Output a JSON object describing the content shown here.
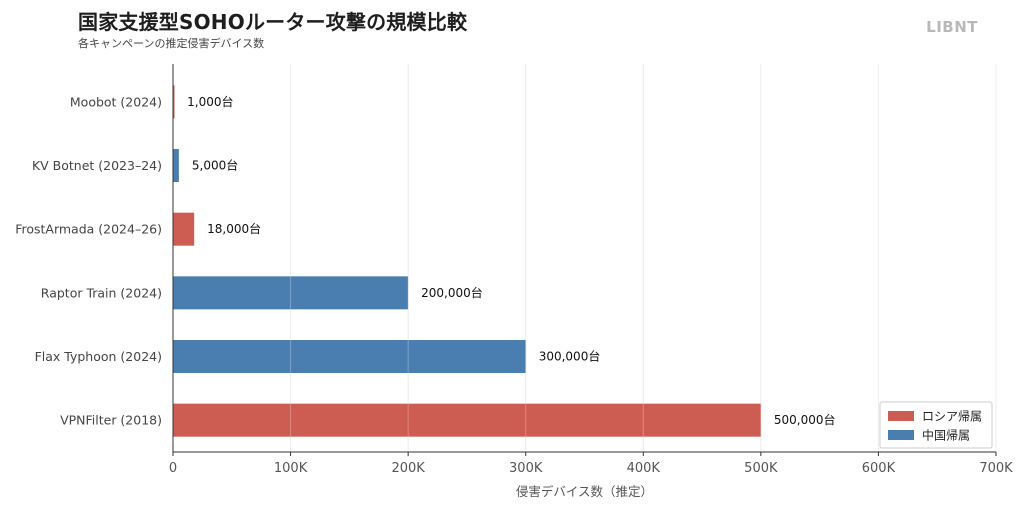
{
  "header": {
    "title": "国家支援型SOHOルーター攻撃の規模比較",
    "subtitle": "各キャンペーンの推定侵害デバイス数",
    "brand": "LIBNT"
  },
  "colors": {
    "russia": "#cd5c52",
    "china": "#4a7eb0"
  },
  "chart_data": {
    "type": "bar",
    "orientation": "horizontal",
    "title": "国家支援型SOHOルーター攻撃の規模比較",
    "subtitle": "各キャンペーンの推定侵害デバイス数",
    "xlabel": "侵害デバイス数（推定）",
    "ylabel": "",
    "xlim": [
      0,
      700000
    ],
    "grid": true,
    "x_ticks": [
      0,
      100000,
      200000,
      300000,
      400000,
      500000,
      600000,
      700000
    ],
    "x_tick_labels": [
      "0",
      "100K",
      "200K",
      "300K",
      "400K",
      "500K",
      "600K",
      "700K"
    ],
    "categories": [
      "Moobot (2024)",
      "KV Botnet (2023–24)",
      "FrostArmada (2024–26)",
      "Raptor Train (2024)",
      "Flax Typhoon (2024)",
      "VPNFilter (2018)"
    ],
    "values": [
      1000,
      5000,
      18000,
      200000,
      300000,
      500000
    ],
    "value_labels": [
      "1,000台",
      "5,000台",
      "18,000台",
      "200,000台",
      "300,000台",
      "500,000台"
    ],
    "groups": [
      "russia",
      "china",
      "russia",
      "china",
      "china",
      "russia"
    ],
    "legend": {
      "placement": "bottom-right",
      "entries": [
        {
          "key": "russia",
          "label": "ロシア帰属"
        },
        {
          "key": "china",
          "label": "中国帰属"
        }
      ]
    }
  }
}
